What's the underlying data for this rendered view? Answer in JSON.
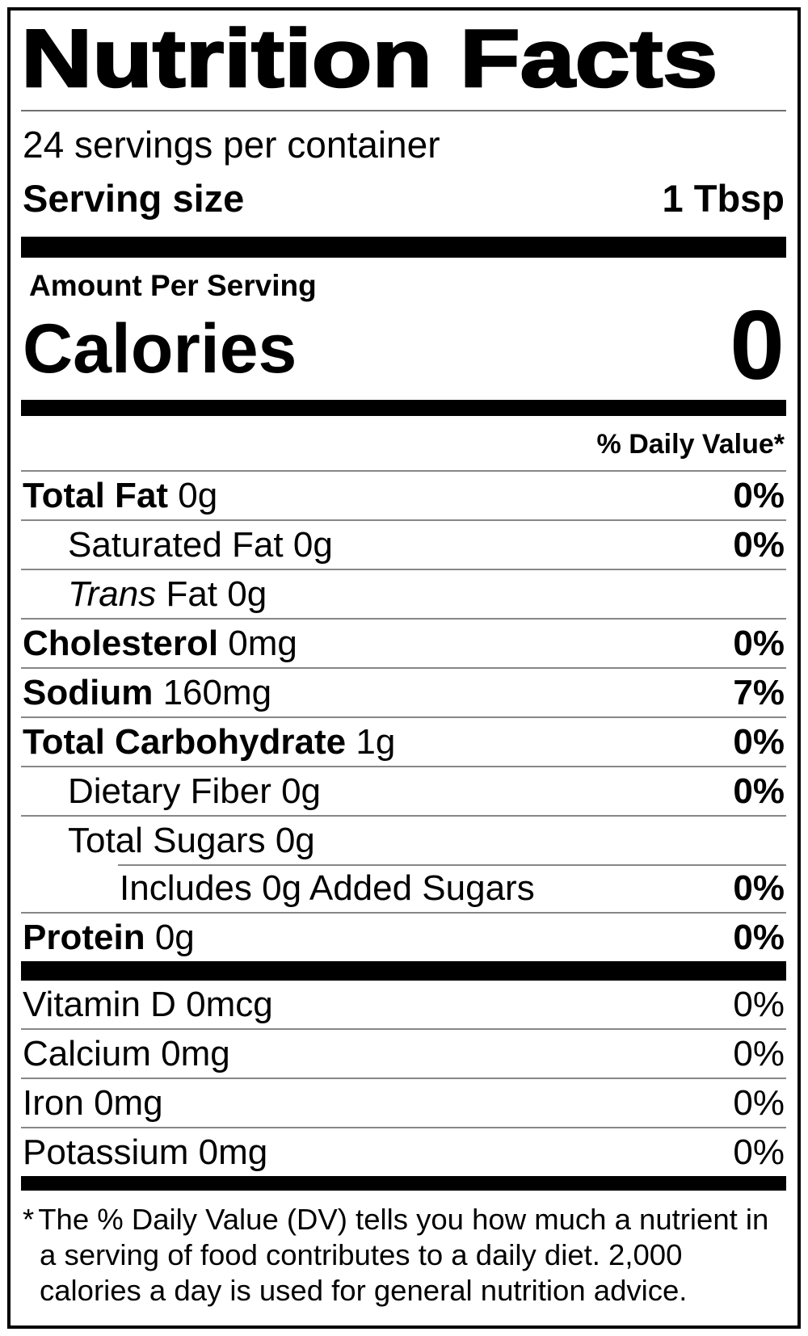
{
  "label": {
    "title": "Nutrition Facts",
    "servings_per_container": "24 servings per container",
    "serving_size": {
      "label": "Serving size",
      "value": "1 Tbsp"
    },
    "amount_per_serving": "Amount Per Serving",
    "calories": {
      "label": "Calories",
      "value": "0"
    },
    "daily_value_header": "% Daily Value*",
    "nutrients": [
      {
        "name": "Total Fat",
        "amount": "0g",
        "dv": "0%",
        "indent": 0,
        "bold_name": true,
        "bold_dv": true
      },
      {
        "name": "Saturated Fat",
        "amount": "0g",
        "dv": "0%",
        "indent": 1,
        "bold_name": false,
        "bold_dv": true
      },
      {
        "name_italic": "Trans",
        "amount": "Fat 0g",
        "dv": "",
        "indent": 1,
        "bold_name": false,
        "bold_dv": false
      },
      {
        "name": "Cholesterol",
        "amount": "0mg",
        "dv": "0%",
        "indent": 0,
        "bold_name": true,
        "bold_dv": true
      },
      {
        "name": "Sodium",
        "amount": "160mg",
        "dv": "7%",
        "indent": 0,
        "bold_name": true,
        "bold_dv": true
      },
      {
        "name": "Total Carbohydrate",
        "amount": "1g",
        "dv": "0%",
        "indent": 0,
        "bold_name": true,
        "bold_dv": true
      },
      {
        "name": "Dietary Fiber",
        "amount": "0g",
        "dv": "0%",
        "indent": 1,
        "bold_name": false,
        "bold_dv": true
      },
      {
        "name": "Total Sugars",
        "amount": "0g",
        "dv": "",
        "indent": 1,
        "bold_name": false,
        "bold_dv": false
      },
      {
        "name": "Includes 0g Added Sugars",
        "amount": "",
        "dv": "0%",
        "indent": 2,
        "bold_name": false,
        "bold_dv": true
      },
      {
        "name": "Protein",
        "amount": "0g",
        "dv": "0%",
        "indent": 0,
        "bold_name": true,
        "bold_dv": true
      }
    ],
    "vitamins": [
      {
        "name": "Vitamin D",
        "amount": "0mcg",
        "dv": "0%"
      },
      {
        "name": "Calcium",
        "amount": "0mg",
        "dv": "0%"
      },
      {
        "name": "Iron",
        "amount": "0mg",
        "dv": "0%"
      },
      {
        "name": "Potassium",
        "amount": "0mg",
        "dv": "0%"
      }
    ],
    "footnote": {
      "marker": "*",
      "text": "The % Daily Value (DV) tells you how much a nutrient in a serving of food contributes to a daily diet. 2,000 calories a day is used for general nutrition advice."
    },
    "colors": {
      "text": "#000000",
      "separator": "#878787",
      "thick_bar": "#000000",
      "background": "#ffffff",
      "border": "#000000"
    }
  }
}
